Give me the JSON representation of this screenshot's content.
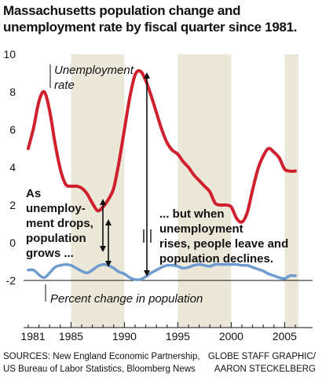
{
  "chart_data": {
    "type": "line",
    "title": "Massachusetts population change and unemployment rate by fiscal quarter since 1981.",
    "ylim": [
      -2,
      10
    ],
    "yticks": [
      "10",
      "8",
      "6",
      "4",
      "2",
      "0",
      "-2"
    ],
    "xlim": [
      1980.7,
      2006.3
    ],
    "xticks": [
      "1981",
      "1985",
      "1990",
      "1995",
      "2000",
      "2005"
    ],
    "grid": false,
    "shaded_periods": [
      [
        1985.0,
        1990.0
      ],
      [
        1995.0,
        2000.0
      ],
      [
        2005.0,
        2006.3
      ]
    ],
    "series": [
      {
        "name": "Unemployment rate",
        "color": "#d0202e",
        "x": [
          1981.0,
          1981.5,
          1982.0,
          1982.5,
          1983.0,
          1983.5,
          1984.0,
          1984.5,
          1985.0,
          1985.5,
          1986.0,
          1986.5,
          1987.0,
          1987.5,
          1988.0,
          1988.5,
          1989.0,
          1989.5,
          1990.0,
          1990.5,
          1991.0,
          1991.5,
          1992.0,
          1992.5,
          1993.0,
          1993.5,
          1994.0,
          1994.5,
          1995.0,
          1995.5,
          1996.0,
          1996.5,
          1997.0,
          1997.5,
          1998.0,
          1998.5,
          1999.0,
          1999.5,
          2000.0,
          2000.5,
          2001.0,
          2001.5,
          2002.0,
          2002.5,
          2003.0,
          2003.5,
          2004.0,
          2004.5,
          2005.0,
          2005.5,
          2006.0
        ],
        "y": [
          5.0,
          6.1,
          7.5,
          8.0,
          7.0,
          5.3,
          3.9,
          3.1,
          3.0,
          3.0,
          2.9,
          2.6,
          2.1,
          1.7,
          1.9,
          2.3,
          2.9,
          4.3,
          6.0,
          7.7,
          8.9,
          9.1,
          8.6,
          7.8,
          6.9,
          6.0,
          5.3,
          4.9,
          4.7,
          4.3,
          4.0,
          3.6,
          3.3,
          3.0,
          2.7,
          2.1,
          2.0,
          2.0,
          1.9,
          1.3,
          1.1,
          1.6,
          2.8,
          3.9,
          4.6,
          5.0,
          4.8,
          4.5,
          3.9,
          3.8,
          3.8
        ]
      },
      {
        "name": "Percent change in population",
        "color": "#6e9bd0",
        "x": [
          1981.0,
          1981.5,
          1982.0,
          1982.5,
          1983.0,
          1983.5,
          1984.0,
          1984.5,
          1985.0,
          1985.5,
          1986.0,
          1986.5,
          1987.0,
          1987.5,
          1988.0,
          1988.5,
          1989.0,
          1989.5,
          1990.0,
          1990.5,
          1991.0,
          1991.5,
          1992.0,
          1992.5,
          1993.0,
          1993.5,
          1994.0,
          1994.5,
          1995.0,
          1995.5,
          1996.0,
          1996.5,
          1997.0,
          1997.5,
          1998.0,
          1998.5,
          1999.0,
          1999.5,
          2000.0,
          2000.5,
          2001.0,
          2001.5,
          2002.0,
          2002.5,
          2003.0,
          2003.5,
          2004.0,
          2004.5,
          2005.0,
          2005.5,
          2006.0
        ],
        "y": [
          -1.45,
          -1.45,
          -1.7,
          -1.85,
          -1.6,
          -1.3,
          -1.2,
          -1.15,
          -1.2,
          -1.35,
          -1.5,
          -1.6,
          -1.45,
          -1.25,
          -1.15,
          -1.2,
          -1.35,
          -1.55,
          -1.65,
          -1.85,
          -1.95,
          -1.95,
          -1.8,
          -1.6,
          -1.45,
          -1.3,
          -1.2,
          -1.2,
          -1.25,
          -1.35,
          -1.3,
          -1.2,
          -1.15,
          -1.2,
          -1.25,
          -1.15,
          -1.15,
          -1.15,
          -1.15,
          -1.15,
          -1.2,
          -1.2,
          -1.3,
          -1.4,
          -1.5,
          -1.65,
          -1.75,
          -1.85,
          -1.9,
          -1.75,
          -1.75
        ]
      }
    ],
    "labels": {
      "unemployment_line1": "Unemployment",
      "unemployment_line2": "rate",
      "population": "Percent change in population"
    },
    "annotations": {
      "left": [
        "As",
        "unemploy-",
        "ment drops,",
        "population",
        "grows ..."
      ],
      "right": [
        "... but when",
        "unemployment",
        "rises, people leave and",
        "population declines."
      ]
    }
  },
  "footer": {
    "sources_line1": "SOURCES: New England Economic Partnership,",
    "sources_line2": "US Bureau of Labor Statistics, Bloomberg News",
    "credit_line1": "GLOBE STAFF GRAPHIC/",
    "credit_line2": "AARON STECKELBERG"
  }
}
